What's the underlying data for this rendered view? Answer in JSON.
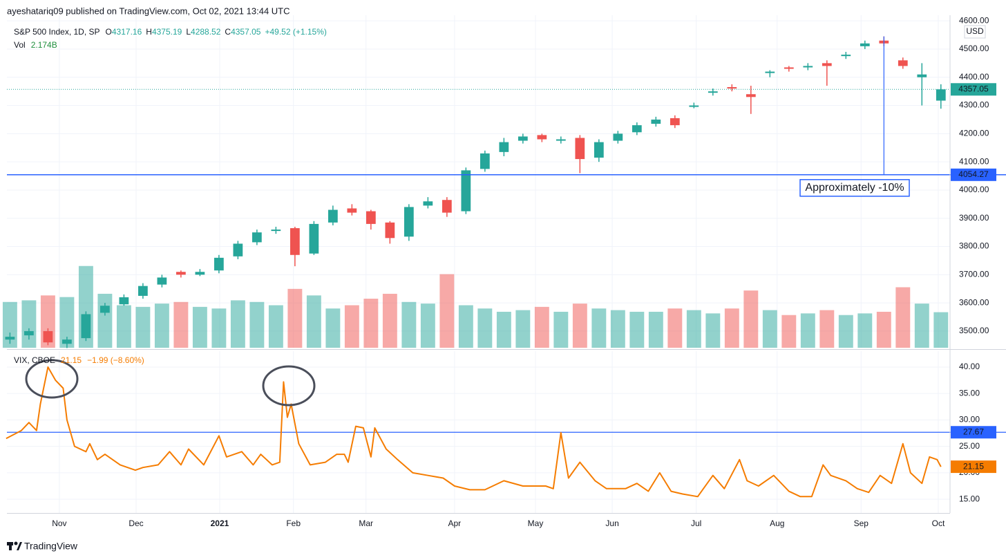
{
  "header": {
    "published": "ayeshatariq09 published on TradingView.com, Oct 02, 2021 13:44 UTC"
  },
  "footer": {
    "brand": "TradingView"
  },
  "chart_data": [
    {
      "type": "candlestick",
      "title": "S&P 500 Index, 1D, SP",
      "ohlc_letters": [
        "O",
        "H",
        "L",
        "C"
      ],
      "change": "+49.52 (+1.15%)",
      "currency": "USD",
      "x": [
        -13,
        -8,
        -3,
        2,
        7,
        12,
        17,
        22,
        27,
        32,
        37,
        42,
        47,
        52,
        57,
        62,
        67,
        72,
        77,
        82,
        87,
        92,
        97,
        102,
        107,
        112,
        117,
        122,
        127,
        132,
        137,
        142,
        147,
        152,
        157,
        162,
        167,
        172,
        177,
        182,
        187,
        192,
        197,
        202,
        207,
        212,
        217,
        222,
        227,
        232
      ],
      "open": [
        3470,
        3485,
        3500,
        3455,
        3475,
        3565,
        3595,
        3625,
        3665,
        3710,
        3700,
        3715,
        3765,
        3815,
        3855,
        3865,
        3775,
        3885,
        3935,
        3925,
        3885,
        3835,
        3945,
        3965,
        3925,
        4075,
        4135,
        4175,
        4195,
        4175,
        4185,
        4115,
        4175,
        4205,
        4235,
        4255,
        4295,
        4345,
        4365,
        4340,
        4415,
        4435,
        4435,
        4450,
        4475,
        4510,
        4530,
        4460,
        4400,
        4317.16
      ],
      "high": [
        3495,
        3510,
        3510,
        3480,
        3570,
        3600,
        3630,
        3670,
        3700,
        3715,
        3720,
        3770,
        3820,
        3860,
        3870,
        3870,
        3890,
        3945,
        3950,
        3930,
        3890,
        3950,
        3975,
        3975,
        4080,
        4140,
        4185,
        4200,
        4200,
        4190,
        4195,
        4180,
        4210,
        4240,
        4260,
        4265,
        4310,
        4360,
        4375,
        4370,
        4425,
        4440,
        4450,
        4460,
        4490,
        4530,
        4545,
        4470,
        4450,
        4375.19
      ],
      "low": [
        3455,
        3470,
        3450,
        3440,
        3465,
        3555,
        3590,
        3615,
        3655,
        3690,
        3695,
        3705,
        3755,
        3805,
        3845,
        3730,
        3770,
        3875,
        3910,
        3860,
        3810,
        3820,
        3935,
        3905,
        3915,
        4065,
        4120,
        4165,
        4170,
        4165,
        4060,
        4100,
        4165,
        4195,
        4225,
        4220,
        4290,
        4335,
        4350,
        4270,
        4400,
        4420,
        4425,
        4370,
        4465,
        4500,
        4510,
        4430,
        4300,
        4288.52
      ],
      "close": [
        3480,
        3500,
        3460,
        3470,
        3560,
        3590,
        3620,
        3660,
        3690,
        3700,
        3710,
        3760,
        3810,
        3850,
        3860,
        3770,
        3880,
        3930,
        3920,
        3880,
        3830,
        3940,
        3960,
        3920,
        4070,
        4130,
        4170,
        4190,
        4180,
        4180,
        4110,
        4170,
        4200,
        4230,
        4250,
        4230,
        4300,
        4350,
        4360,
        4330,
        4420,
        4430,
        4440,
        4440,
        4480,
        4520,
        4520,
        4440,
        4410,
        4357.05
      ],
      "up_color": "#26a69a",
      "down_color": "#ef5350",
      "volume": {
        "name": "Vol",
        "last_label": "2.174B",
        "vlim": [
          0,
          5.2
        ],
        "values": [
          2.8,
          2.9,
          3.2,
          3.1,
          5.0,
          3.3,
          2.6,
          2.5,
          2.7,
          2.8,
          2.5,
          2.4,
          2.9,
          2.8,
          2.6,
          3.6,
          3.2,
          2.4,
          2.6,
          3.0,
          3.3,
          2.8,
          2.7,
          4.5,
          2.6,
          2.4,
          2.2,
          2.3,
          2.5,
          2.2,
          2.7,
          2.4,
          2.3,
          2.2,
          2.2,
          2.4,
          2.3,
          2.1,
          2.4,
          3.5,
          2.3,
          2.0,
          2.1,
          2.3,
          2.0,
          2.1,
          2.2,
          3.7,
          2.7,
          2.174
        ]
      },
      "xlim": [
        -13.8,
        234.4
      ],
      "xticks": [
        {
          "value": 0,
          "label": "Nov"
        },
        {
          "value": 20.2,
          "label": "Dec"
        },
        {
          "value": 42.2,
          "label": "2021"
        },
        {
          "value": 61.6,
          "label": "Feb"
        },
        {
          "value": 80.7,
          "label": "Mar"
        },
        {
          "value": 104,
          "label": "Apr"
        },
        {
          "value": 125.3,
          "label": "May"
        },
        {
          "value": 145.5,
          "label": "Jun"
        },
        {
          "value": 167.6,
          "label": "Jul"
        },
        {
          "value": 188.9,
          "label": "Aug"
        },
        {
          "value": 211,
          "label": "Sep"
        },
        {
          "value": 231.3,
          "label": "Oct"
        }
      ],
      "ylim": [
        3441,
        4620
      ],
      "yticks": [
        {
          "value": 3500,
          "label": "3500.00"
        },
        {
          "value": 3600,
          "label": "3600.00"
        },
        {
          "value": 3700,
          "label": "3700.00"
        },
        {
          "value": 3800,
          "label": "3800.00"
        },
        {
          "value": 3900,
          "label": "3900.00"
        },
        {
          "value": 4000,
          "label": "4000.00"
        },
        {
          "value": 4100,
          "label": "4100.00"
        },
        {
          "value": 4200,
          "label": "4200.00"
        },
        {
          "value": 4300,
          "label": "4300.00"
        },
        {
          "value": 4400,
          "label": "4400.00"
        },
        {
          "value": 4500,
          "label": "4500.00"
        },
        {
          "value": 4600,
          "label": "4600.00"
        }
      ],
      "hline": {
        "value": 4054.27,
        "color": "#2962ff"
      },
      "annotation": "Approximately -10%",
      "grid": true
    },
    {
      "type": "line",
      "title": "VIX, CBOE",
      "change": "−1.99 (−8.60%)",
      "color": "#f57c00",
      "x": [
        -14,
        -10,
        -8,
        -6,
        -5,
        -3,
        -1,
        1,
        2,
        4,
        7,
        8,
        10,
        12,
        16,
        20,
        22,
        26,
        29,
        32,
        34,
        38,
        42,
        44,
        48,
        51,
        53,
        56,
        58,
        59,
        60,
        61,
        63,
        66,
        70,
        73,
        75,
        76,
        78,
        80,
        82,
        83,
        86,
        89,
        93,
        97,
        101,
        104,
        108,
        112,
        117,
        122,
        128,
        130,
        132,
        134,
        137,
        141,
        144,
        149,
        152,
        155,
        158,
        161,
        164,
        168,
        172,
        175,
        179,
        181,
        184,
        188,
        192,
        195,
        198,
        201,
        203,
        207,
        210,
        213,
        216,
        219,
        222,
        224,
        227,
        229,
        231,
        232
      ],
      "values": [
        26.5,
        28,
        29.5,
        28,
        33,
        40,
        37.5,
        36,
        30,
        25,
        24,
        25.5,
        22.5,
        23.5,
        21.5,
        20.5,
        21,
        21.5,
        24,
        21.5,
        24.5,
        21.5,
        27,
        23,
        24,
        21.5,
        23.5,
        21.5,
        22,
        37.2,
        30.5,
        33,
        25.5,
        21.5,
        22,
        23.5,
        23.5,
        22,
        28.8,
        28.5,
        23,
        28.5,
        24.5,
        22.5,
        20,
        19.5,
        19,
        17.5,
        16.8,
        16.8,
        18.5,
        17.5,
        17.5,
        17,
        27.6,
        19,
        22,
        18.5,
        17,
        17,
        18,
        16.5,
        20,
        16.5,
        16,
        15.5,
        19.5,
        17,
        22.5,
        18.5,
        17.5,
        19.5,
        16.5,
        15.5,
        15.5,
        21.5,
        19.5,
        18.5,
        17,
        16.3,
        19.5,
        18,
        25.5,
        20,
        18,
        23,
        22.5,
        21.15
      ],
      "ylim": [
        12.4,
        43
      ],
      "yticks": [
        {
          "value": 15,
          "label": "15.00"
        },
        {
          "value": 20,
          "label": "20.00"
        },
        {
          "value": 25,
          "label": "25.00"
        },
        {
          "value": 30,
          "label": "30.00"
        },
        {
          "value": 35,
          "label": "35.00"
        },
        {
          "value": 40,
          "label": "40.00"
        }
      ],
      "hline": {
        "value": 27.67,
        "color": "#2962ff"
      },
      "grid": true
    }
  ]
}
